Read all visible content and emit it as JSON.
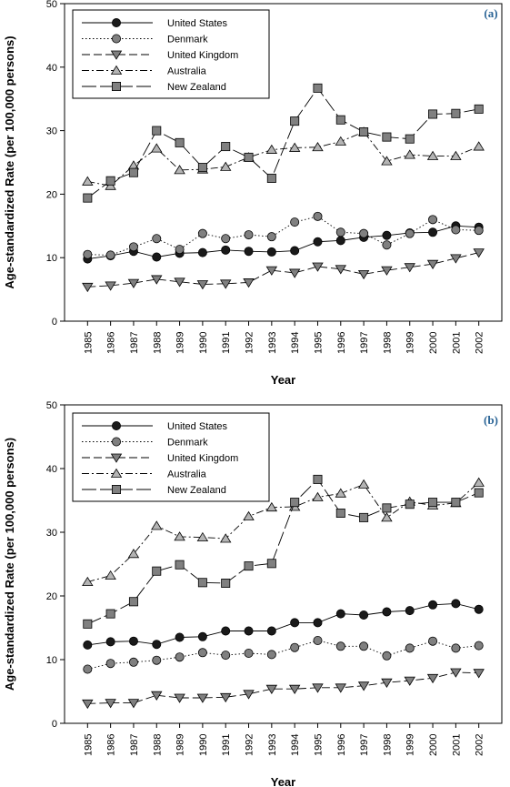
{
  "chart_data": [
    {
      "type": "line",
      "panel_label": "(a)",
      "xlabel": "Year",
      "ylabel": "Age-standardized Rate (per 100,000 persons)",
      "ylim": [
        0,
        50
      ],
      "yticks": [
        "0",
        "10",
        "20",
        "30",
        "40",
        "50"
      ],
      "categories": [
        "1985",
        "1986",
        "1987",
        "1988",
        "1989",
        "1990",
        "1991",
        "1992",
        "1993",
        "1994",
        "1995",
        "1996",
        "1997",
        "1998",
        "1999",
        "2000",
        "2001",
        "2002"
      ],
      "legend_position": "top-left",
      "series": [
        {
          "name": "United States",
          "marker": "circle",
          "color": "#1a1a1a",
          "dash": "",
          "values": [
            9.8,
            10.3,
            11.0,
            10.1,
            10.7,
            10.8,
            11.2,
            11.0,
            10.9,
            11.1,
            12.5,
            12.7,
            13.2,
            13.5,
            13.9,
            14.0,
            15.0,
            14.8
          ]
        },
        {
          "name": "Denmark",
          "marker": "circle",
          "color": "#808080",
          "dash": "1.5,2.5",
          "values": [
            10.5,
            10.4,
            11.7,
            13.0,
            11.3,
            13.8,
            13.0,
            13.6,
            13.3,
            15.6,
            16.5,
            14.0,
            13.8,
            12.0,
            13.8,
            16.0,
            14.4,
            14.3
          ]
        },
        {
          "name": "United Kingdom",
          "marker": "triangle-down",
          "color": "#808080",
          "dash": "9,4",
          "values": [
            5.4,
            5.6,
            6.0,
            6.6,
            6.2,
            5.8,
            5.9,
            6.1,
            8.0,
            7.6,
            8.6,
            8.2,
            7.4,
            8.0,
            8.5,
            9.0,
            9.9,
            10.8
          ]
        },
        {
          "name": "Australia",
          "marker": "triangle-up",
          "color": "#b4b4b4",
          "dash": "8,3,2,3",
          "values": [
            22.0,
            21.3,
            24.5,
            27.2,
            23.8,
            23.9,
            24.3,
            25.8,
            27.0,
            27.3,
            27.4,
            28.3,
            29.8,
            25.2,
            26.2,
            26.0,
            26.0,
            27.5
          ]
        },
        {
          "name": "New Zealand",
          "marker": "square",
          "color": "#808080",
          "dash": "16,4",
          "values": [
            19.4,
            22.1,
            23.4,
            30.0,
            28.1,
            24.2,
            27.5,
            25.8,
            22.5,
            31.5,
            36.7,
            31.7,
            29.8,
            29.0,
            28.7,
            32.6,
            32.7,
            33.4
          ]
        }
      ]
    },
    {
      "type": "line",
      "panel_label": "(b)",
      "xlabel": "Year",
      "ylabel": "Age-standardized Rate (per 100,000 persons)",
      "ylim": [
        0,
        50
      ],
      "yticks": [
        "0",
        "10",
        "20",
        "30",
        "40",
        "50"
      ],
      "categories": [
        "1985",
        "1986",
        "1987",
        "1988",
        "1989",
        "1990",
        "1991",
        "1992",
        "1993",
        "1994",
        "1995",
        "1996",
        "1997",
        "1998",
        "1999",
        "2000",
        "2001",
        "2002"
      ],
      "legend_position": "top-left",
      "series": [
        {
          "name": "United States",
          "marker": "circle",
          "color": "#1a1a1a",
          "dash": "",
          "values": [
            12.3,
            12.8,
            12.9,
            12.4,
            13.5,
            13.6,
            14.5,
            14.5,
            14.5,
            15.8,
            15.8,
            17.2,
            17.0,
            17.5,
            17.7,
            18.6,
            18.8,
            17.9
          ]
        },
        {
          "name": "Denmark",
          "marker": "circle",
          "color": "#808080",
          "dash": "1.5,2.5",
          "values": [
            8.5,
            9.4,
            9.6,
            9.9,
            10.4,
            11.1,
            10.7,
            11.0,
            10.8,
            11.9,
            13.0,
            12.1,
            12.1,
            10.6,
            11.8,
            12.9,
            11.8,
            12.2
          ]
        },
        {
          "name": "United Kingdom",
          "marker": "triangle-down",
          "color": "#808080",
          "dash": "9,4",
          "values": [
            3.1,
            3.2,
            3.2,
            4.4,
            4.0,
            4.0,
            4.1,
            4.6,
            5.4,
            5.4,
            5.6,
            5.6,
            5.9,
            6.4,
            6.7,
            7.1,
            8.0,
            7.9
          ]
        },
        {
          "name": "Australia",
          "marker": "triangle-up",
          "color": "#b4b4b4",
          "dash": "8,3,2,3",
          "values": [
            22.2,
            23.2,
            26.6,
            31.0,
            29.3,
            29.2,
            29.0,
            32.5,
            33.9,
            34.0,
            35.5,
            36.1,
            37.5,
            32.3,
            34.8,
            34.2,
            34.6,
            37.8
          ]
        },
        {
          "name": "New Zealand",
          "marker": "square",
          "color": "#808080",
          "dash": "16,4",
          "values": [
            15.6,
            17.2,
            19.1,
            23.9,
            24.9,
            22.1,
            22.0,
            24.7,
            25.1,
            34.7,
            38.3,
            33.0,
            32.3,
            33.8,
            34.4,
            34.7,
            34.7,
            36.2
          ]
        }
      ]
    }
  ]
}
